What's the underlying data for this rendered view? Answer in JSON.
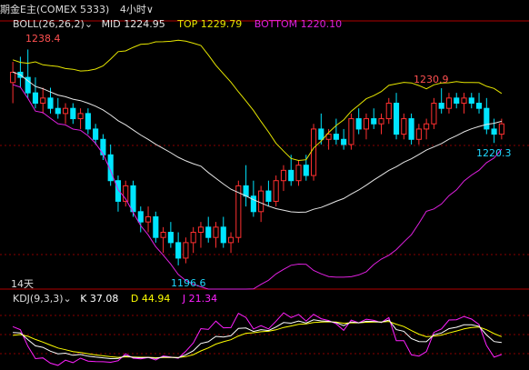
{
  "header": {
    "title": "期金E主(COMEX 5333)",
    "timeframe": "4小时",
    "timeframe_arrow": "∨"
  },
  "boll": {
    "label": "BOLL(26,26,2)",
    "mid": "MID 1224.95",
    "top": "TOP 1229.79",
    "bottom": "BOTTOM 1220.10"
  },
  "price_labels": {
    "high_left": "1238.4",
    "high_right": "1230.9",
    "low_right": "1220.3",
    "low_mid": "1196.6",
    "period": "14天"
  },
  "kdj": {
    "label": "KDJ(9,3,3)",
    "k": "K 37.08",
    "d": "D 44.94",
    "j": "J 21.34"
  },
  "colors": {
    "up": "#ff3030",
    "down": "#00e5ff",
    "mid_line": "#e6e6e6",
    "top_line": "#e6e600",
    "bottom_line": "#e020e0",
    "k_line": "#ffffff",
    "d_line": "#ffff00",
    "j_line": "#ff20ff",
    "grid": "#8a0000"
  },
  "chart_data": {
    "type": "candlestick",
    "indicator": "BOLL(26,26,2) + KDJ(9,3,3)",
    "candles": [
      [
        1232,
        1236,
        1228,
        1234
      ],
      [
        1234,
        1237,
        1231,
        1233
      ],
      [
        1233,
        1238.4,
        1229,
        1230
      ],
      [
        1230,
        1233,
        1227,
        1228
      ],
      [
        1228,
        1231,
        1226,
        1229
      ],
      [
        1229,
        1231,
        1226,
        1227
      ],
      [
        1227,
        1229,
        1225,
        1226
      ],
      [
        1226,
        1228,
        1224,
        1227
      ],
      [
        1227,
        1228,
        1224,
        1225
      ],
      [
        1225,
        1227,
        1223,
        1226
      ],
      [
        1226,
        1227,
        1222,
        1223
      ],
      [
        1223,
        1224,
        1220,
        1221
      ],
      [
        1221,
        1222,
        1217,
        1218
      ],
      [
        1218,
        1220,
        1212,
        1213
      ],
      [
        1213,
        1214,
        1207,
        1209
      ],
      [
        1209,
        1213,
        1208,
        1212
      ],
      [
        1212,
        1213,
        1206,
        1207
      ],
      [
        1207,
        1208,
        1203,
        1205
      ],
      [
        1205,
        1208,
        1203,
        1206
      ],
      [
        1206,
        1207,
        1201,
        1202
      ],
      [
        1202,
        1204,
        1199,
        1203
      ],
      [
        1203,
        1205,
        1200,
        1201
      ],
      [
        1201,
        1203,
        1196.6,
        1198
      ],
      [
        1198,
        1202,
        1197,
        1201
      ],
      [
        1201,
        1204,
        1199,
        1203
      ],
      [
        1203,
        1205,
        1200,
        1204
      ],
      [
        1204,
        1206,
        1201,
        1202
      ],
      [
        1202,
        1205,
        1200,
        1204
      ],
      [
        1204,
        1206,
        1200,
        1201
      ],
      [
        1201,
        1203,
        1199,
        1202
      ],
      [
        1202,
        1213,
        1201,
        1212
      ],
      [
        1212,
        1216,
        1208,
        1210
      ],
      [
        1210,
        1213,
        1206,
        1207
      ],
      [
        1207,
        1212,
        1205,
        1211
      ],
      [
        1211,
        1213,
        1208,
        1209
      ],
      [
        1209,
        1214,
        1208,
        1213
      ],
      [
        1213,
        1216,
        1211,
        1215
      ],
      [
        1215,
        1218,
        1212,
        1213
      ],
      [
        1213,
        1217,
        1212,
        1216
      ],
      [
        1216,
        1218,
        1213,
        1214
      ],
      [
        1214,
        1224,
        1213,
        1223
      ],
      [
        1223,
        1226,
        1220,
        1221
      ],
      [
        1221,
        1223,
        1219,
        1222
      ],
      [
        1222,
        1225,
        1220,
        1221
      ],
      [
        1221,
        1223,
        1219,
        1220
      ],
      [
        1220,
        1226,
        1219,
        1225
      ],
      [
        1225,
        1227,
        1222,
        1223
      ],
      [
        1223,
        1226,
        1221,
        1225
      ],
      [
        1225,
        1227,
        1223,
        1224
      ],
      [
        1224,
        1226,
        1222,
        1225
      ],
      [
        1225,
        1229,
        1224,
        1228
      ],
      [
        1228,
        1230,
        1221,
        1222
      ],
      [
        1222,
        1226,
        1221,
        1225
      ],
      [
        1225,
        1226,
        1220,
        1221
      ],
      [
        1221,
        1224,
        1220,
        1223
      ],
      [
        1223,
        1225,
        1221,
        1224
      ],
      [
        1224,
        1229,
        1223,
        1228
      ],
      [
        1228,
        1230.9,
        1226,
        1227
      ],
      [
        1227,
        1230,
        1226,
        1229
      ],
      [
        1229,
        1230,
        1227,
        1228
      ],
      [
        1228,
        1230,
        1226,
        1229
      ],
      [
        1229,
        1230,
        1227,
        1228
      ],
      [
        1228,
        1230,
        1226,
        1227
      ],
      [
        1227,
        1229,
        1222,
        1223
      ],
      [
        1223,
        1225,
        1220.3,
        1222
      ],
      [
        1222,
        1225,
        1221,
        1224
      ]
    ]
  }
}
